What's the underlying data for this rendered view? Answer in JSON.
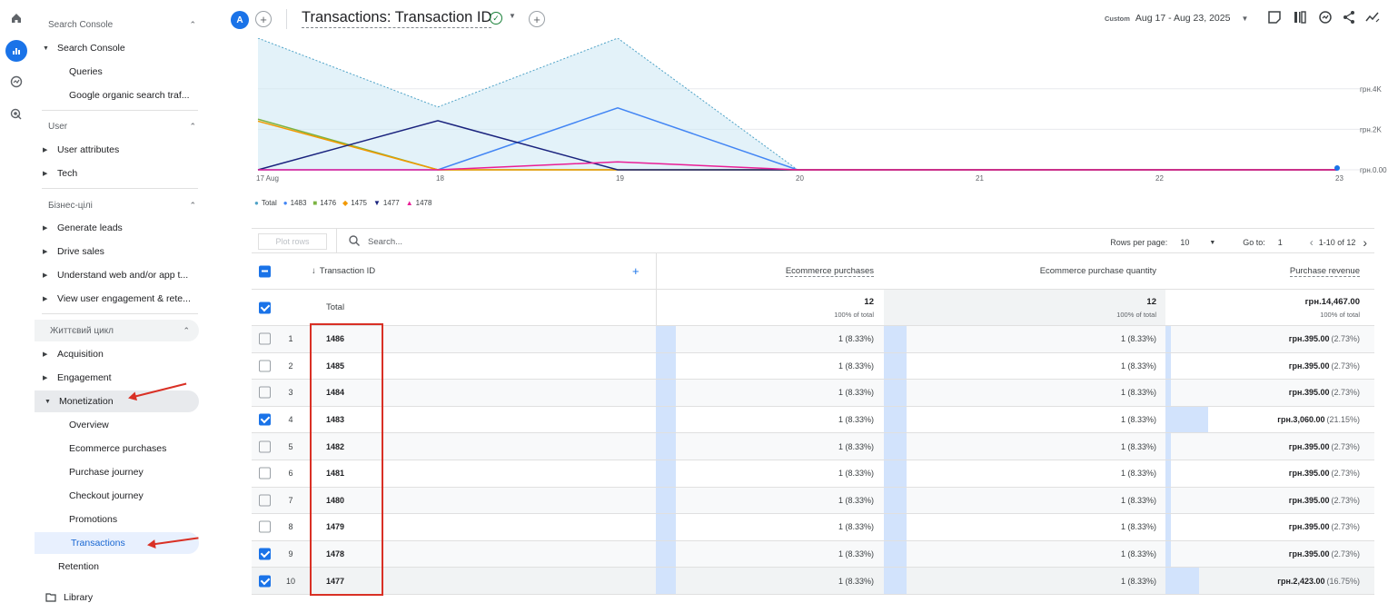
{
  "rail": {
    "icons": [
      "home-icon",
      "reports-icon",
      "explore-icon",
      "advertising-icon"
    ]
  },
  "sidebar": {
    "search_console_section": "Search Console",
    "search_console_group": "Search Console",
    "queries": "Queries",
    "google_organic": "Google organic search traf...",
    "user_section": "User",
    "user_attributes": "User attributes",
    "tech": "Tech",
    "business_section": "Бізнес-цілі",
    "generate_leads": "Generate leads",
    "drive_sales": "Drive sales",
    "understand_web": "Understand web and/or app t...",
    "view_engagement": "View user engagement & rete...",
    "lifecycle_section": "Життєвий цикл",
    "acquisition": "Acquisition",
    "engagement": "Engagement",
    "monetization": "Monetization",
    "overview": "Overview",
    "ecommerce_purchases": "Ecommerce purchases",
    "purchase_journey": "Purchase journey",
    "checkout_journey": "Checkout journey",
    "promotions": "Promotions",
    "transactions": "Transactions",
    "retention": "Retention",
    "library": "Library"
  },
  "header": {
    "avatar_letter": "A",
    "title": "Transactions: Transaction ID",
    "date_custom": "Custom",
    "date_range": "Aug 17 - Aug 23, 2025"
  },
  "chart_data": {
    "type": "line",
    "x": [
      "17 Aug",
      "18",
      "19",
      "20",
      "21",
      "22",
      "23"
    ],
    "y_ticks": [
      "грн.4K",
      "грн.2K",
      "грн.0.00"
    ],
    "series": [
      {
        "name": "Total",
        "color": "#4fa3c7",
        "values": [
          6500,
          3100,
          6500,
          0,
          0,
          0,
          0
        ]
      },
      {
        "name": "1483",
        "color": "#4285f4",
        "values": [
          0,
          0,
          3060,
          0,
          0,
          0,
          0
        ]
      },
      {
        "name": "1476",
        "color": "#7cb342",
        "values": [
          2500,
          0,
          0,
          0,
          0,
          0,
          0
        ]
      },
      {
        "name": "1475",
        "color": "#f29900",
        "values": [
          2400,
          0,
          0,
          0,
          0,
          0,
          0
        ]
      },
      {
        "name": "1477",
        "color": "#1a237e",
        "values": [
          0,
          2423,
          0,
          0,
          0,
          0,
          0
        ]
      },
      {
        "name": "1478",
        "color": "#e91e96",
        "values": [
          0,
          0,
          395,
          0,
          0,
          0,
          0
        ]
      }
    ],
    "ylim": [
      0,
      6500
    ]
  },
  "toolbar": {
    "plot_rows": "Plot rows",
    "search_placeholder": "Search...",
    "rows_per_page_label": "Rows per page:",
    "rows_per_page": "10",
    "goto_label": "Go to:",
    "goto_value": "1",
    "range": "1-10 of 12"
  },
  "table": {
    "col_dim": "Transaction ID",
    "col1": "Ecommerce purchases",
    "col2": "Ecommerce purchase quantity",
    "col3": "Purchase revenue",
    "total_label": "Total",
    "total_c1": "12",
    "total_c1_sub": "100% of total",
    "total_c2": "12",
    "total_c2_sub": "100% of total",
    "total_c3": "грн.14,467.00",
    "total_c3_sub": "100% of total",
    "rows": [
      {
        "n": "1",
        "id": "1486",
        "c1": "1 (8.33%)",
        "c2": "1 (8.33%)",
        "rev": "грн.395.00",
        "pct": "(2.73%)",
        "checked": false,
        "share": 0.0273
      },
      {
        "n": "2",
        "id": "1485",
        "c1": "1 (8.33%)",
        "c2": "1 (8.33%)",
        "rev": "грн.395.00",
        "pct": "(2.73%)",
        "checked": false,
        "share": 0.0273
      },
      {
        "n": "3",
        "id": "1484",
        "c1": "1 (8.33%)",
        "c2": "1 (8.33%)",
        "rev": "грн.395.00",
        "pct": "(2.73%)",
        "checked": false,
        "share": 0.0273
      },
      {
        "n": "4",
        "id": "1483",
        "c1": "1 (8.33%)",
        "c2": "1 (8.33%)",
        "rev": "грн.3,060.00",
        "pct": "(21.15%)",
        "checked": true,
        "share": 0.2115
      },
      {
        "n": "5",
        "id": "1482",
        "c1": "1 (8.33%)",
        "c2": "1 (8.33%)",
        "rev": "грн.395.00",
        "pct": "(2.73%)",
        "checked": false,
        "share": 0.0273
      },
      {
        "n": "6",
        "id": "1481",
        "c1": "1 (8.33%)",
        "c2": "1 (8.33%)",
        "rev": "грн.395.00",
        "pct": "(2.73%)",
        "checked": false,
        "share": 0.0273
      },
      {
        "n": "7",
        "id": "1480",
        "c1": "1 (8.33%)",
        "c2": "1 (8.33%)",
        "rev": "грн.395.00",
        "pct": "(2.73%)",
        "checked": false,
        "share": 0.0273
      },
      {
        "n": "8",
        "id": "1479",
        "c1": "1 (8.33%)",
        "c2": "1 (8.33%)",
        "rev": "грн.395.00",
        "pct": "(2.73%)",
        "checked": false,
        "share": 0.0273
      },
      {
        "n": "9",
        "id": "1478",
        "c1": "1 (8.33%)",
        "c2": "1 (8.33%)",
        "rev": "грн.395.00",
        "pct": "(2.73%)",
        "checked": true,
        "share": 0.0273
      },
      {
        "n": "10",
        "id": "1477",
        "c1": "1 (8.33%)",
        "c2": "1 (8.33%)",
        "rev": "грн.2,423.00",
        "pct": "(16.75%)",
        "checked": true,
        "share": 0.1675
      }
    ]
  },
  "colors": {
    "accent": "#1a73e8",
    "annotation": "#d93025",
    "bar": "#d2e3fc"
  }
}
